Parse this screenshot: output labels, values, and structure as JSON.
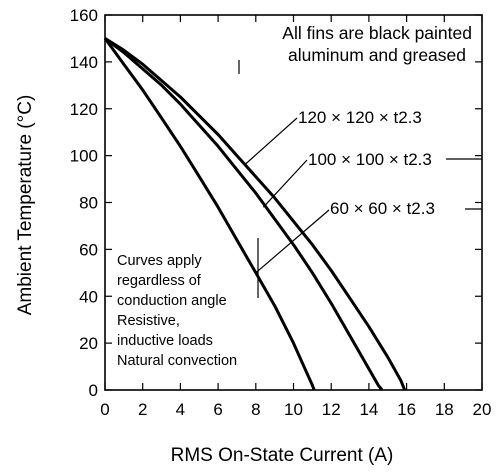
{
  "chart_data": {
    "type": "line",
    "xlabel": "RMS On-State Current  (A)",
    "ylabel": "Ambient Temperature  (°C)",
    "xlim": [
      0,
      20
    ],
    "ylim": [
      0,
      160
    ],
    "x_ticks": [
      "0",
      "2",
      "4",
      "6",
      "8",
      "10",
      "12",
      "14",
      "16",
      "18",
      "20"
    ],
    "y_ticks": [
      "0",
      "20",
      "40",
      "60",
      "80",
      "100",
      "120",
      "140",
      "160"
    ],
    "grid": false,
    "annotations": {
      "top_note": [
        "All fins are black painted",
        "aluminum and greased"
      ],
      "bottom_note": [
        "Curves apply",
        "regardless of",
        "conduction angle",
        "Resistive,",
        "inductive loads",
        "Natural convection"
      ]
    },
    "series": [
      {
        "name": "120 × 120 × t2.3",
        "x": [
          0,
          1,
          2,
          3,
          4,
          5,
          6,
          7,
          8,
          9,
          10,
          11,
          12,
          13,
          14,
          15,
          15.7,
          15.8,
          15.9
        ],
        "y": [
          150,
          145,
          139,
          132,
          125,
          117,
          109,
          100,
          91,
          82,
          72,
          62,
          51,
          39,
          27,
          14,
          4,
          2,
          0
        ]
      },
      {
        "name": "100 × 100 × t2.3",
        "x": [
          0,
          1,
          2,
          3,
          4,
          5,
          6,
          7,
          8,
          9,
          10,
          11,
          12,
          13,
          14,
          14.5,
          14.7
        ],
        "y": [
          150,
          144,
          137,
          130,
          122,
          113,
          104,
          94,
          84,
          73,
          62,
          50,
          37,
          23,
          9,
          2,
          0
        ]
      },
      {
        "name": "60 × 60 × t2.3",
        "x": [
          0,
          1,
          2,
          3,
          4,
          5,
          6,
          7,
          8,
          9,
          10,
          10.5,
          11,
          11.1
        ],
        "y": [
          150,
          139,
          128,
          116,
          104,
          91,
          78,
          64,
          50,
          36,
          20,
          11,
          2,
          0
        ]
      }
    ],
    "series_labels": [
      "120 × 120 × t2.3",
      "100 × 100 × t2.3",
      "60 × 60 × t2.3"
    ]
  }
}
